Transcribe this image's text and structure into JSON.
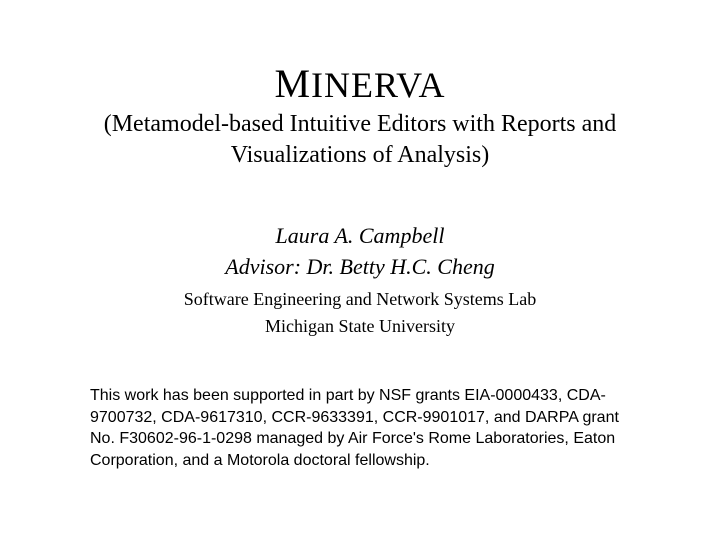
{
  "title": {
    "first_letter": "M",
    "rest": "INERVA",
    "subtitle": "(Metamodel-based Intuitive Editors with Reports and Visualizations of Analysis)"
  },
  "author": {
    "name": "Laura A. Campbell",
    "advisor": "Advisor: Dr. Betty H.C. Cheng",
    "lab": "Software Engineering and Network Systems Lab",
    "university": "Michigan State University"
  },
  "funding": "This work has been supported in part by NSF grants EIA-0000433, CDA-9700732, CDA-9617310, CCR-9633391, CCR-9901017, and DARPA grant No. F30602-96-1-0298 managed by Air Force's Rome Laboratories, Eaton Corporation, and a Motorola doctoral fellowship.",
  "styling": {
    "background_color": "#ffffff",
    "text_color": "#000000",
    "title_font": "Times New Roman",
    "title_first_fontsize": 40,
    "title_rest_fontsize": 36,
    "subtitle_fontsize": 24,
    "author_fontsize": 22,
    "lab_fontsize": 18,
    "funding_font": "Arial",
    "funding_fontsize": 16,
    "slide_width": 720,
    "slide_height": 540
  }
}
